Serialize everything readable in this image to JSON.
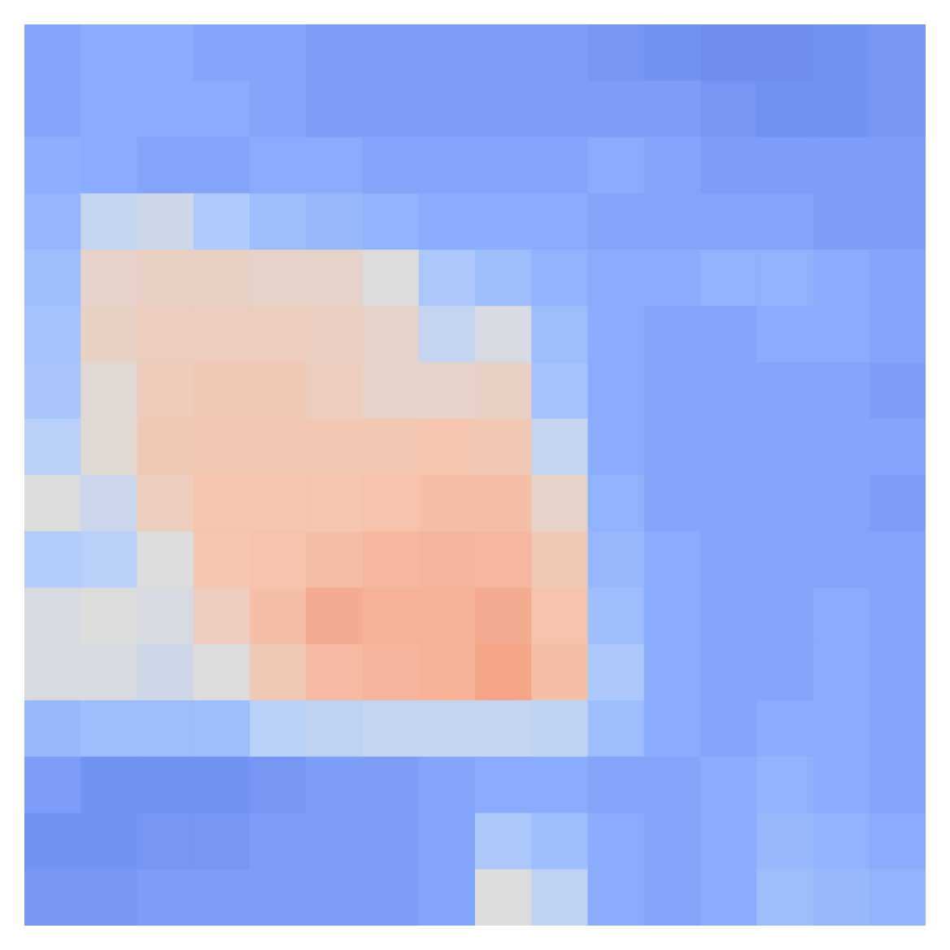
{
  "chart_data": {
    "type": "heatmap",
    "tick_labels": false,
    "zlim": [
      0,
      1
    ],
    "cells": [
      [
        0.22,
        0.24,
        0.24,
        0.22,
        0.22,
        0.2,
        0.2,
        0.2,
        0.2,
        0.2,
        0.18,
        0.17,
        0.16,
        0.16,
        0.17,
        0.18
      ],
      [
        0.22,
        0.24,
        0.24,
        0.24,
        0.22,
        0.2,
        0.2,
        0.2,
        0.2,
        0.2,
        0.2,
        0.2,
        0.18,
        0.17,
        0.17,
        0.18
      ],
      [
        0.25,
        0.24,
        0.22,
        0.22,
        0.24,
        0.24,
        0.22,
        0.22,
        0.22,
        0.22,
        0.24,
        0.22,
        0.2,
        0.2,
        0.2,
        0.2
      ],
      [
        0.27,
        0.42,
        0.45,
        0.35,
        0.3,
        0.28,
        0.26,
        0.24,
        0.24,
        0.24,
        0.22,
        0.22,
        0.22,
        0.22,
        0.2,
        0.2
      ],
      [
        0.3,
        0.55,
        0.56,
        0.56,
        0.55,
        0.55,
        0.5,
        0.34,
        0.3,
        0.26,
        0.24,
        0.24,
        0.26,
        0.26,
        0.24,
        0.22
      ],
      [
        0.32,
        0.56,
        0.58,
        0.58,
        0.58,
        0.57,
        0.55,
        0.42,
        0.48,
        0.3,
        0.24,
        0.22,
        0.22,
        0.24,
        0.24,
        0.22
      ],
      [
        0.33,
        0.52,
        0.59,
        0.6,
        0.6,
        0.58,
        0.55,
        0.55,
        0.56,
        0.32,
        0.24,
        0.22,
        0.22,
        0.22,
        0.22,
        0.2
      ],
      [
        0.38,
        0.52,
        0.6,
        0.61,
        0.61,
        0.61,
        0.61,
        0.62,
        0.61,
        0.42,
        0.24,
        0.22,
        0.22,
        0.22,
        0.22,
        0.22
      ],
      [
        0.5,
        0.44,
        0.58,
        0.62,
        0.62,
        0.62,
        0.63,
        0.64,
        0.64,
        0.55,
        0.26,
        0.22,
        0.22,
        0.22,
        0.22,
        0.2
      ],
      [
        0.36,
        0.38,
        0.5,
        0.62,
        0.63,
        0.64,
        0.66,
        0.67,
        0.66,
        0.6,
        0.28,
        0.24,
        0.22,
        0.22,
        0.22,
        0.22
      ],
      [
        0.48,
        0.5,
        0.48,
        0.58,
        0.64,
        0.7,
        0.68,
        0.68,
        0.7,
        0.63,
        0.3,
        0.24,
        0.22,
        0.22,
        0.24,
        0.22
      ],
      [
        0.48,
        0.48,
        0.45,
        0.5,
        0.6,
        0.65,
        0.67,
        0.68,
        0.72,
        0.64,
        0.34,
        0.24,
        0.22,
        0.22,
        0.24,
        0.22
      ],
      [
        0.28,
        0.3,
        0.3,
        0.3,
        0.38,
        0.4,
        0.42,
        0.42,
        0.42,
        0.4,
        0.3,
        0.24,
        0.22,
        0.24,
        0.24,
        0.22
      ],
      [
        0.2,
        0.17,
        0.17,
        0.17,
        0.18,
        0.2,
        0.2,
        0.22,
        0.24,
        0.24,
        0.22,
        0.22,
        0.24,
        0.26,
        0.24,
        0.22
      ],
      [
        0.17,
        0.17,
        0.18,
        0.18,
        0.2,
        0.2,
        0.2,
        0.22,
        0.34,
        0.3,
        0.24,
        0.22,
        0.24,
        0.28,
        0.26,
        0.24
      ],
      [
        0.18,
        0.18,
        0.2,
        0.2,
        0.2,
        0.2,
        0.2,
        0.22,
        0.5,
        0.4,
        0.24,
        0.22,
        0.24,
        0.3,
        0.28,
        0.26
      ]
    ]
  }
}
